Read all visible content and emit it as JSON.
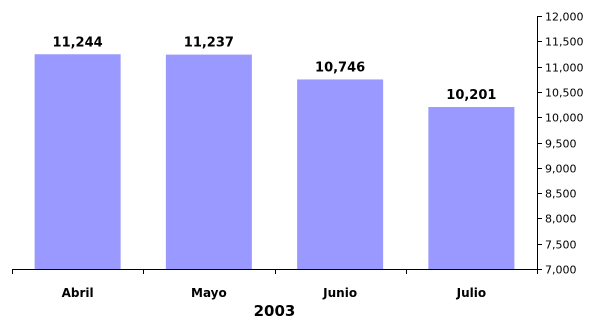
{
  "chart_data": {
    "type": "bar",
    "categories": [
      "Abril",
      "Mayo",
      "Junio",
      "Julio"
    ],
    "values": [
      11244,
      11237,
      10746,
      10201
    ],
    "data_labels": [
      "11,244",
      "11,237",
      "10,746",
      "10,201"
    ],
    "xlabel": "2003",
    "ylim": [
      7000,
      12000
    ],
    "y_ticks": [
      7000,
      7500,
      8000,
      8500,
      9000,
      9500,
      10000,
      10500,
      11000,
      11500,
      12000
    ],
    "y_tick_labels": [
      "7,000",
      "7,500",
      "8,000",
      "8,500",
      "9,000",
      "9,500",
      "10,000",
      "10,500",
      "11,000",
      "11,500",
      "12,000"
    ],
    "y_axis_side": "right",
    "grid": false,
    "legend": "none",
    "bar_color": "#9999ff"
  }
}
